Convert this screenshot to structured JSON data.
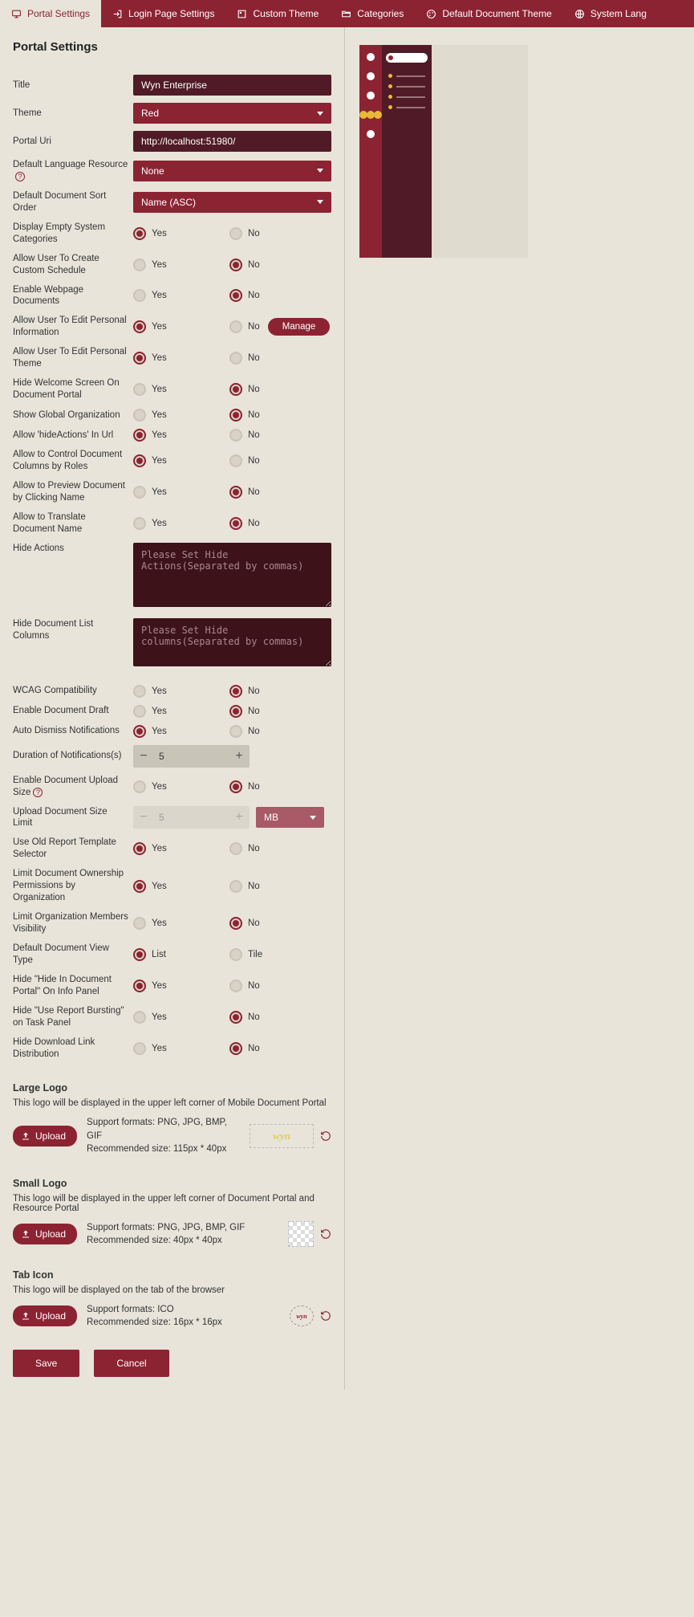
{
  "tabs": [
    {
      "label": "Portal Settings",
      "icon": "monitor"
    },
    {
      "label": "Login Page Settings",
      "icon": "login"
    },
    {
      "label": "Custom Theme",
      "icon": "palette"
    },
    {
      "label": "Categories",
      "icon": "folders"
    },
    {
      "label": "Default Document Theme",
      "icon": "paint"
    },
    {
      "label": "System Lang",
      "icon": "globe"
    }
  ],
  "pageTitle": "Portal Settings",
  "fields": {
    "title": {
      "label": "Title",
      "value": "Wyn Enterprise"
    },
    "theme": {
      "label": "Theme",
      "value": "Red"
    },
    "portalUri": {
      "label": "Portal Uri",
      "value": "http://localhost:51980/"
    },
    "defaultLang": {
      "label": "Default Language Resource",
      "value": "None",
      "help": true
    },
    "sortOrder": {
      "label": "Default Document Sort Order",
      "value": "Name (ASC)"
    }
  },
  "radioGroups": [
    {
      "key": "emptyCat",
      "label": "Display Empty System Categories",
      "opts": [
        "Yes",
        "No"
      ],
      "sel": 0
    },
    {
      "key": "customSched",
      "label": "Allow User To Create Custom Schedule",
      "opts": [
        "Yes",
        "No"
      ],
      "sel": 1
    },
    {
      "key": "webpageDoc",
      "label": "Enable Webpage Documents",
      "opts": [
        "Yes",
        "No"
      ],
      "sel": 1
    },
    {
      "key": "editPersonal",
      "label": "Allow User To Edit Personal Information",
      "opts": [
        "Yes",
        "No"
      ],
      "sel": 0,
      "btn": "Manage"
    },
    {
      "key": "editTheme",
      "label": "Allow User To Edit Personal Theme",
      "opts": [
        "Yes",
        "No"
      ],
      "sel": 0
    },
    {
      "key": "hideWelcome",
      "label": "Hide Welcome Screen On Document Portal",
      "opts": [
        "Yes",
        "No"
      ],
      "sel": 1
    },
    {
      "key": "globalOrg",
      "label": "Show Global Organization",
      "opts": [
        "Yes",
        "No"
      ],
      "sel": 1
    },
    {
      "key": "hideActionsUrl",
      "label": "Allow 'hideActions' In Url",
      "opts": [
        "Yes",
        "No"
      ],
      "sel": 0
    },
    {
      "key": "controlCols",
      "label": "Allow to Control Document Columns by Roles",
      "opts": [
        "Yes",
        "No"
      ],
      "sel": 0
    },
    {
      "key": "previewClick",
      "label": "Allow to Preview Document by Clicking Name",
      "opts": [
        "Yes",
        "No"
      ],
      "sel": 1
    },
    {
      "key": "translate",
      "label": "Allow to Translate Document Name",
      "opts": [
        "Yes",
        "No"
      ],
      "sel": 1
    }
  ],
  "textAreas": {
    "hideActions": {
      "label": "Hide Actions",
      "placeholder": "Please Set Hide Actions(Separated by commas)"
    },
    "hideCols": {
      "label": "Hide Document List Columns",
      "placeholder": "Please Set Hide columns(Separated by commas)"
    }
  },
  "radioGroups2": [
    {
      "key": "wcag",
      "label": "WCAG Compatibility",
      "opts": [
        "Yes",
        "No"
      ],
      "sel": 1
    },
    {
      "key": "draft",
      "label": "Enable Document Draft",
      "opts": [
        "Yes",
        "No"
      ],
      "sel": 1
    },
    {
      "key": "autoDismiss",
      "label": "Auto Dismiss Notifications",
      "opts": [
        "Yes",
        "No"
      ],
      "sel": 0
    }
  ],
  "duration": {
    "label": "Duration of Notifications(s)",
    "value": "5"
  },
  "uploadSize": {
    "label": "Enable Document Upload Size",
    "opts": [
      "Yes",
      "No"
    ],
    "sel": 1,
    "help": true
  },
  "uploadLimit": {
    "label": "Upload Document Size Limit",
    "value": "5",
    "unit": "MB"
  },
  "radioGroups3": [
    {
      "key": "oldSelector",
      "label": "Use Old Report Template Selector",
      "opts": [
        "Yes",
        "No"
      ],
      "sel": 0
    },
    {
      "key": "limitOwner",
      "label": "Limit Document Ownership Permissions by Organization",
      "opts": [
        "Yes",
        "No"
      ],
      "sel": 0
    },
    {
      "key": "limitOrgVis",
      "label": "Limit Organization Members Visibility",
      "opts": [
        "Yes",
        "No"
      ],
      "sel": 1
    },
    {
      "key": "viewType",
      "label": "Default Document View Type",
      "opts": [
        "List",
        "Tile"
      ],
      "sel": 0
    },
    {
      "key": "hideInfo",
      "label": "Hide \"Hide In Document Portal\" On Info Panel",
      "opts": [
        "Yes",
        "No"
      ],
      "sel": 0
    },
    {
      "key": "hideBursting",
      "label": "Hide \"Use Report Bursting\" on Task Panel",
      "opts": [
        "Yes",
        "No"
      ],
      "sel": 1
    },
    {
      "key": "hideDownload",
      "label": "Hide Download Link Distribution",
      "opts": [
        "Yes",
        "No"
      ],
      "sel": 1
    }
  ],
  "logos": {
    "large": {
      "title": "Large Logo",
      "desc": "This logo will be displayed in the upper left corner of Mobile Document Portal",
      "formats": "Support formats: PNG, JPG, BMP, GIF",
      "size": "Recommended size: 115px * 40px",
      "preview": "wyn"
    },
    "small": {
      "title": "Small Logo",
      "desc": "This logo will be displayed in the upper left corner of Document Portal and Resource Portal",
      "formats": "Support formats: PNG, JPG, BMP, GIF",
      "size": "Recommended size: 40px * 40px"
    },
    "tab": {
      "title": "Tab Icon",
      "desc": "This logo will be displayed on the tab of the browser",
      "formats": "Support formats: ICO",
      "size": "Recommended size: 16px * 16px",
      "preview": "wyn"
    }
  },
  "uploadLabel": "Upload",
  "footer": {
    "save": "Save",
    "cancel": "Cancel"
  },
  "colors": {
    "primary": "#8c2332",
    "dark": "#501b26",
    "bg": "#e8e4da",
    "accent": "#e8b93a"
  }
}
